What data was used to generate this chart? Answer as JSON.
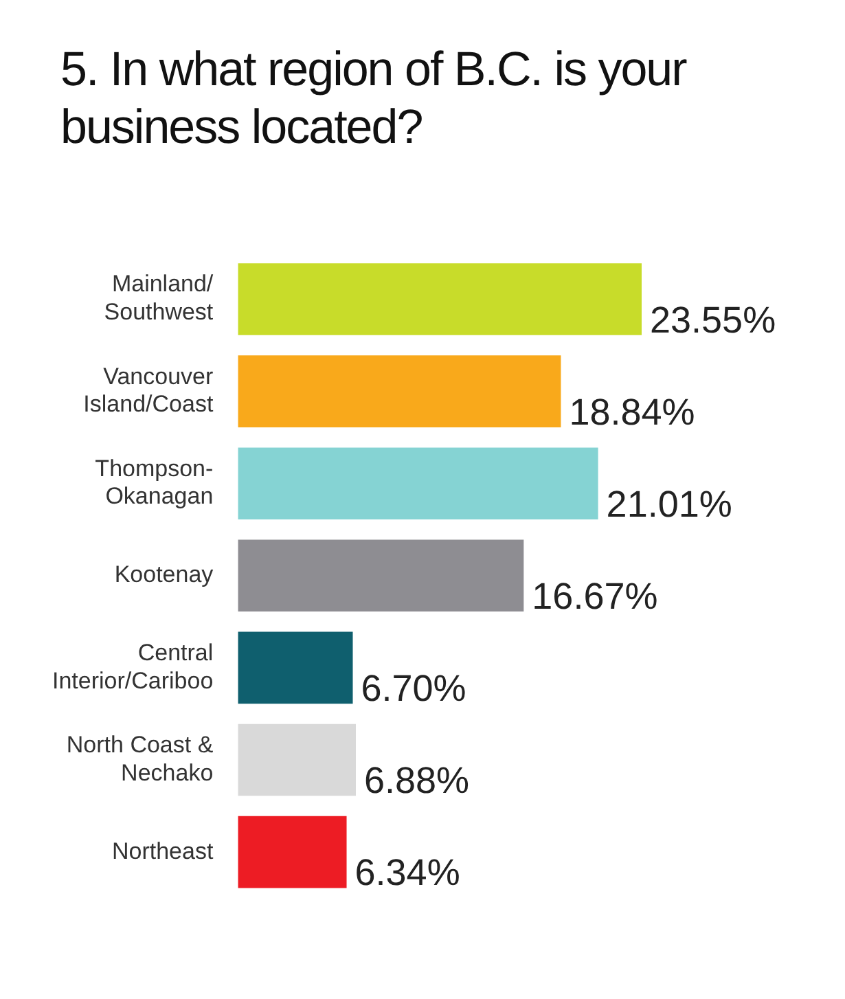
{
  "chart_data": {
    "type": "bar",
    "orientation": "horizontal",
    "title": "5. In what region of B.C. is your business located?",
    "categories": [
      "Mainland/Southwest",
      "Vancouver Island/Coast",
      "Thompson-Okanagan",
      "Kootenay",
      "Central Interior/Cariboo",
      "North Coast & Nechako",
      "Northeast"
    ],
    "values": [
      23.55,
      18.84,
      21.01,
      16.67,
      6.7,
      6.88,
      6.34
    ],
    "value_labels": [
      "23.55%",
      "18.84%",
      "21.01%",
      "16.67%",
      "6.70%",
      "6.88%",
      "6.34%"
    ],
    "colors": [
      "#c8dc2a",
      "#f9a91b",
      "#85d3d3",
      "#8e8d92",
      "#0f5f6e",
      "#d9d9d9",
      "#ed1c24"
    ],
    "legend": false
  }
}
